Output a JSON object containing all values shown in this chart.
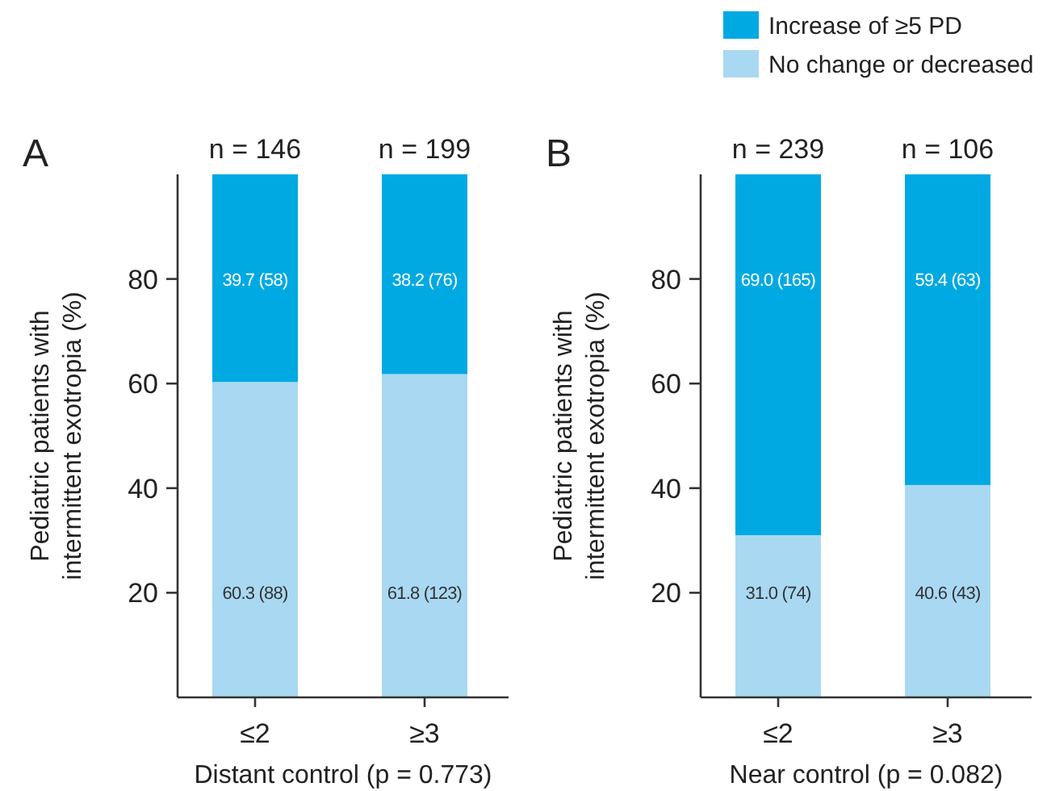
{
  "chart_data": [
    {
      "type": "bar",
      "title": "A",
      "stacked": true,
      "categories": [
        "≤2",
        "≥3"
      ],
      "xlabel": "Distant control (p = 0.773)",
      "ylabel": "Pediatric patients with\nintermittent exotropia (%)",
      "ylim": [
        0,
        100
      ],
      "yticks": [
        20,
        40,
        60,
        80
      ],
      "grid": false,
      "legend": false,
      "series": [
        {
          "color": "#a9d8f2",
          "values": [
            60.3,
            61.8
          ],
          "value_labels": [
            "60.3 (88)",
            "61.8 (123)"
          ]
        },
        {
          "color": "#00a9e2",
          "values": [
            39.7,
            38.2
          ],
          "value_labels": [
            "39.7 (58)",
            "38.2 (76)"
          ]
        }
      ],
      "annotations": [
        {
          "text": "n = 146",
          "x": "≤2",
          "y": 100
        },
        {
          "text": "n = 199",
          "x": "≥3",
          "y": 100
        }
      ]
    },
    {
      "type": "bar",
      "title": "B",
      "stacked": true,
      "categories": [
        "≤2",
        "≥3"
      ],
      "xlabel": "Near control (p = 0.082)",
      "ylabel": "Pediatric patients with\nintermittent exotropia (%)",
      "ylim": [
        0,
        100
      ],
      "yticks": [
        20,
        40,
        60,
        80
      ],
      "grid": false,
      "legend": "top right",
      "series": [
        {
          "name": "No change or decreased",
          "color": "#a9d8f2",
          "values": [
            31.0,
            40.6
          ],
          "value_labels": [
            "31.0 (74)",
            "40.6 (43)"
          ]
        },
        {
          "name": "Increase of ≥5 PD",
          "color": "#00a9e2",
          "values": [
            69.0,
            59.4
          ],
          "value_labels": [
            "69.0 (165)",
            "59.4 (63)"
          ]
        }
      ],
      "annotations": [
        {
          "text": "n = 239",
          "x": "≤2",
          "y": 100
        },
        {
          "text": "n = 106",
          "x": "≥3",
          "y": 100
        }
      ]
    }
  ]
}
